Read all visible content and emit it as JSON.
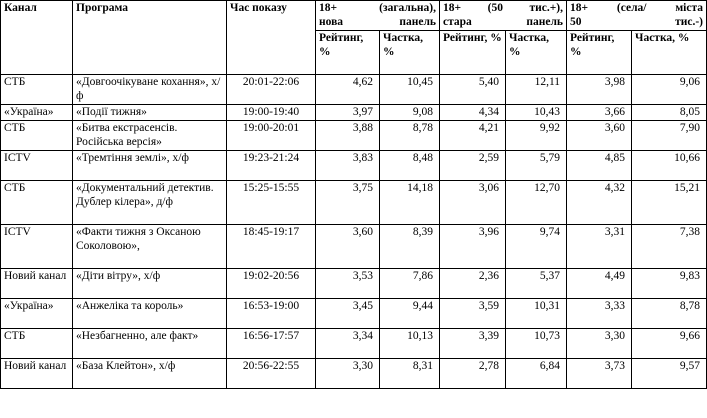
{
  "headers": {
    "channel": "Канал",
    "program": "Програма",
    "time": "Час показу",
    "groups": [
      {
        "line1": "18+ (загальна),",
        "line2": "нова панель"
      },
      {
        "line1": "18+ (50 тис.+),",
        "line2": "стара панель"
      },
      {
        "line1": "18+ (села/ міста",
        "line2": "50 тис.-)"
      }
    ],
    "rating": "Рейтинг, %",
    "share": "Частка, %"
  },
  "rows": [
    {
      "channel": "СТБ",
      "program": "«Довгоочікуване кохання», х/ф",
      "time": "20:01-22:06",
      "vals": [
        "4,62",
        "10,45",
        "5,40",
        "12,11",
        "3,98",
        "9,06"
      ]
    },
    {
      "channel": "«Україна»",
      "program": "«Події тижня»",
      "time": "19:00-19:40",
      "vals": [
        "3,97",
        "9,08",
        "4,34",
        "10,43",
        "3,66",
        "8,05"
      ]
    },
    {
      "channel": "СТБ",
      "program": "«Битва екстрасенсів. Російська версія»",
      "time": "19:00-20:01",
      "vals": [
        "3,88",
        "8,78",
        "4,21",
        "9,92",
        "3,60",
        "7,90"
      ]
    },
    {
      "channel": "ICTV",
      "program": "«Тремтіння землі», х/ф",
      "time": "19:23-21:24",
      "vals": [
        "3,83",
        "8,48",
        "2,59",
        "5,79",
        "4,85",
        "10,66"
      ]
    },
    {
      "channel": "СТБ",
      "program": "«Документальний детектив. Дублер кілера», д/ф",
      "time": "15:25-15:55",
      "vals": [
        "3,75",
        "14,18",
        "3,06",
        "12,70",
        "4,32",
        "15,21"
      ]
    },
    {
      "channel": "ICTV",
      "program": "«Факти тижня з Оксаною Соколовою»,",
      "time": "18:45-19:17",
      "vals": [
        "3,60",
        "8,39",
        "3,96",
        "9,74",
        "3,31",
        "7,38"
      ]
    },
    {
      "channel": "Новий канал",
      "program": "«Діти вітру», х/ф",
      "time": "19:02-20:56",
      "vals": [
        "3,53",
        "7,86",
        "2,36",
        "5,37",
        "4,49",
        "9,83"
      ]
    },
    {
      "channel": "«Україна»",
      "program": "«Анжеліка та король»",
      "time": "16:53-19:00",
      "vals": [
        "3,45",
        "9,44",
        "3,59",
        "10,31",
        "3,33",
        "8,78"
      ]
    },
    {
      "channel": "СТБ",
      "program": "«Незбагненно, але факт»",
      "time": "16:56-17:57",
      "vals": [
        "3,34",
        "10,13",
        "3,39",
        "10,73",
        "3,30",
        "9,66"
      ]
    },
    {
      "channel": "Новий канал",
      "program": "«База Клейтон», х/ф",
      "time": "20:56-22:55",
      "vals": [
        "3,30",
        "8,31",
        "2,78",
        "6,84",
        "3,73",
        "9,57"
      ]
    }
  ]
}
